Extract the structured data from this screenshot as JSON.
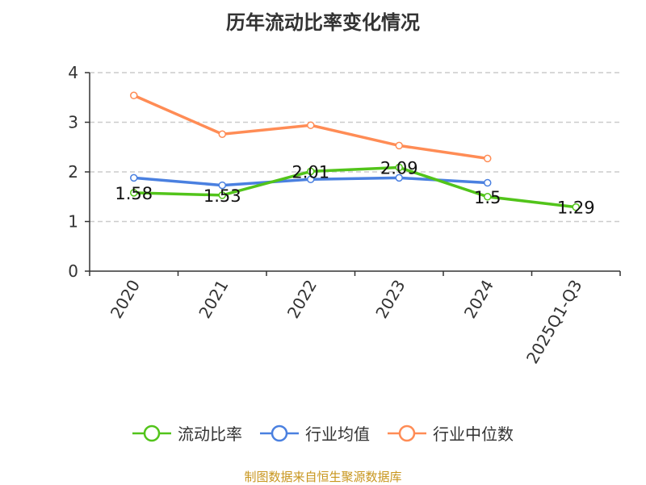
{
  "chart_data": {
    "type": "line",
    "title": "历年流动比率变化情况",
    "categories": [
      "2020",
      "2021",
      "2022",
      "2023",
      "2024",
      "2025Q1-Q3"
    ],
    "ylim": [
      0,
      4
    ],
    "yticks": [
      0,
      1,
      2,
      3,
      4
    ],
    "grid": true,
    "legend_placement": "bottom",
    "series": [
      {
        "name": "流动比率",
        "color": "#52c41a",
        "values": [
          1.58,
          1.53,
          2.01,
          2.09,
          1.5,
          1.29
        ],
        "labels": [
          "1.58",
          "1.53",
          "2.01",
          "2.09",
          "1.5",
          "1.29"
        ]
      },
      {
        "name": "行业均值",
        "color": "#4a80e0",
        "values": [
          1.88,
          1.73,
          1.85,
          1.88,
          1.78,
          null
        ]
      },
      {
        "name": "行业中位数",
        "color": "#ff8c55",
        "values": [
          3.54,
          2.76,
          2.94,
          2.53,
          2.27,
          null
        ]
      }
    ]
  },
  "source": "制图数据来自恒生聚源数据库"
}
